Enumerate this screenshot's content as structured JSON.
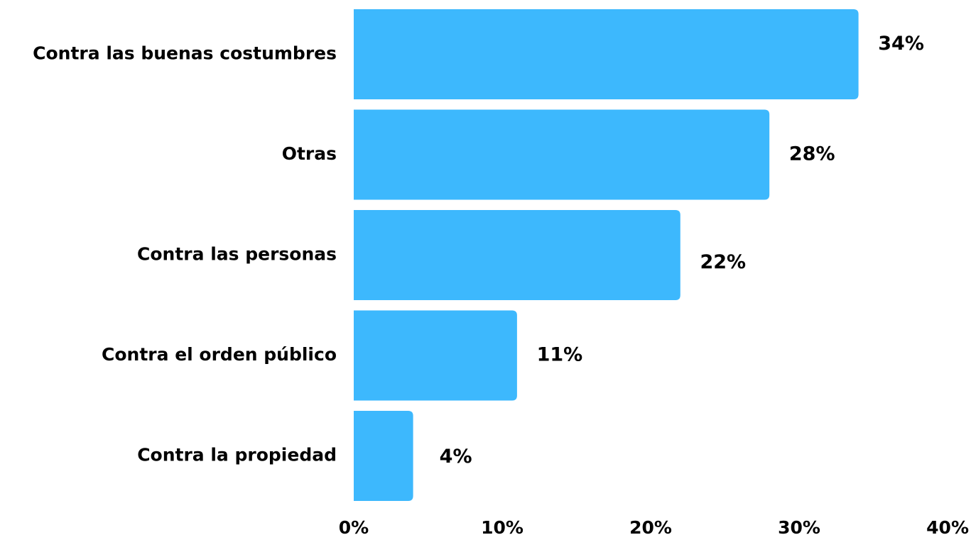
{
  "chart_data": {
    "type": "bar",
    "orientation": "horizontal",
    "categories": [
      "Contra las buenas costumbres",
      "Otras",
      "Contra las personas",
      "Contra el orden público",
      "Contra la propiedad"
    ],
    "values": [
      34,
      28,
      22,
      11,
      4
    ],
    "value_labels": [
      "34%",
      "28%",
      "22%",
      "11%",
      "4%"
    ],
    "xlim": [
      0,
      40
    ],
    "x_ticks": [
      0,
      10,
      20,
      30,
      40
    ],
    "x_tick_labels": [
      "0%",
      "10%",
      "20%",
      "30%",
      "40%"
    ],
    "title": "",
    "xlabel": "",
    "ylabel": "",
    "grid": false,
    "legend": "none",
    "bar_color": "#3DB8FD",
    "text_color": "#000000"
  }
}
